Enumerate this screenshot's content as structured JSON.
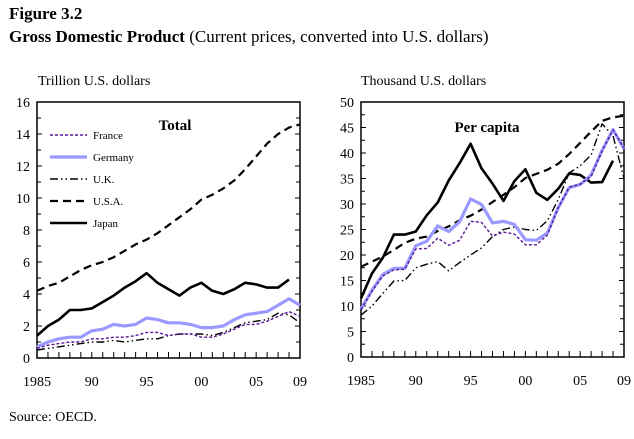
{
  "figure": {
    "number": "Figure 3.2",
    "title_bold": "Gross Domestic Product",
    "title_rest": " (Current prices, converted into U.S. dollars)",
    "source": "Source:  OECD."
  },
  "series_styles": {
    "France": {
      "color": "#5a1a9a",
      "style": "dash-short"
    },
    "Germany": {
      "color": "#9999ff",
      "style": "solid-thick"
    },
    "U.K.": {
      "color": "#000000",
      "style": "dash-dot-dot"
    },
    "U.S.A.": {
      "color": "#000000",
      "style": "dash-long"
    },
    "Japan": {
      "color": "#000000",
      "style": "solid"
    }
  },
  "chart_data": [
    {
      "type": "line",
      "title": "Total",
      "ylabel": "Trillion U.S. dollars",
      "xlabel": "",
      "x": [
        1985,
        1986,
        1987,
        1988,
        1989,
        1990,
        1991,
        1992,
        1993,
        1994,
        1995,
        1996,
        1997,
        1998,
        1999,
        2000,
        2001,
        2002,
        2003,
        2004,
        2005,
        2006,
        2007,
        2008,
        2009
      ],
      "xlim": [
        1985,
        2009
      ],
      "ylim": [
        0,
        16
      ],
      "xticks": [
        "1985",
        "90",
        "95",
        "00",
        "05",
        "09"
      ],
      "xtick_values": [
        1985,
        1990,
        1995,
        2000,
        2005,
        2009
      ],
      "yticks": [
        0,
        2,
        4,
        6,
        8,
        10,
        12,
        14,
        16
      ],
      "legend": [
        "France",
        "Germany",
        "U.K.",
        "U.S.A.",
        "Japan"
      ],
      "legend_position": "top-left",
      "grid": false,
      "series": [
        {
          "name": "France",
          "values": [
            0.6,
            0.8,
            0.9,
            1.0,
            1.0,
            1.2,
            1.2,
            1.3,
            1.3,
            1.4,
            1.6,
            1.6,
            1.4,
            1.5,
            1.5,
            1.3,
            1.3,
            1.5,
            1.8,
            2.1,
            2.1,
            2.3,
            2.6,
            2.9,
            2.6
          ]
        },
        {
          "name": "Germany",
          "values": [
            0.7,
            1.0,
            1.2,
            1.3,
            1.3,
            1.7,
            1.8,
            2.1,
            2.0,
            2.1,
            2.5,
            2.4,
            2.2,
            2.2,
            2.1,
            1.9,
            1.9,
            2.0,
            2.4,
            2.7,
            2.8,
            2.9,
            3.3,
            3.7,
            3.3
          ]
        },
        {
          "name": "U.K.",
          "values": [
            0.5,
            0.6,
            0.7,
            0.8,
            0.9,
            1.0,
            1.0,
            1.1,
            1.0,
            1.1,
            1.2,
            1.2,
            1.4,
            1.5,
            1.5,
            1.5,
            1.4,
            1.6,
            1.9,
            2.2,
            2.3,
            2.4,
            2.8,
            2.7,
            2.2
          ]
        },
        {
          "name": "U.S.A.",
          "values": [
            4.2,
            4.5,
            4.7,
            5.1,
            5.5,
            5.8,
            6.0,
            6.3,
            6.7,
            7.1,
            7.4,
            7.8,
            8.3,
            8.8,
            9.3,
            9.9,
            10.2,
            10.6,
            11.1,
            11.8,
            12.6,
            13.4,
            14.0,
            14.4,
            14.6
          ]
        },
        {
          "name": "Japan",
          "values": [
            1.4,
            2.0,
            2.4,
            3.0,
            3.0,
            3.1,
            3.5,
            3.9,
            4.4,
            4.8,
            5.3,
            4.7,
            4.3,
            3.9,
            4.4,
            4.7,
            4.2,
            4.0,
            4.3,
            4.7,
            4.6,
            4.4,
            4.4,
            4.9,
            null
          ]
        }
      ]
    },
    {
      "type": "line",
      "title": "Per capita",
      "ylabel": "Thousand U.S. dollars",
      "xlabel": "",
      "x": [
        1985,
        1986,
        1987,
        1988,
        1989,
        1990,
        1991,
        1992,
        1993,
        1994,
        1995,
        1996,
        1997,
        1998,
        1999,
        2000,
        2001,
        2002,
        2003,
        2004,
        2005,
        2006,
        2007,
        2008,
        2009
      ],
      "xlim": [
        1985,
        2009
      ],
      "ylim": [
        0,
        50
      ],
      "xticks": [
        "1985",
        "90",
        "95",
        "00",
        "05",
        "09"
      ],
      "xtick_values": [
        1985,
        1990,
        1995,
        2000,
        2005,
        2009
      ],
      "yticks": [
        0,
        5,
        10,
        15,
        20,
        25,
        30,
        35,
        40,
        45,
        50
      ],
      "grid": false,
      "series": [
        {
          "name": "France",
          "values": [
            9.3,
            12.9,
            15.9,
            17.1,
            17.2,
            21.2,
            21.3,
            23.3,
            21.9,
            22.9,
            26.6,
            26.4,
            23.7,
            24.5,
            24.1,
            22.0,
            22.0,
            23.9,
            29.3,
            33.3,
            33.9,
            35.4,
            40.4,
            44.5,
            41.0
          ]
        },
        {
          "name": "Germany",
          "values": [
            9.4,
            13.1,
            16.2,
            17.4,
            17.4,
            21.8,
            22.7,
            25.7,
            24.6,
            26.5,
            31.0,
            29.9,
            26.3,
            26.6,
            26.0,
            23.0,
            22.9,
            24.3,
            29.3,
            33.2,
            33.8,
            35.7,
            40.5,
            44.6,
            40.8
          ]
        },
        {
          "name": "U.K.",
          "values": [
            8.2,
            10.0,
            12.5,
            14.9,
            15.0,
            17.5,
            18.2,
            18.7,
            16.9,
            18.5,
            20.0,
            21.4,
            23.6,
            25.0,
            25.5,
            25.0,
            24.8,
            26.7,
            30.9,
            36.1,
            37.5,
            39.6,
            45.7,
            43.4,
            35.0
          ]
        },
        {
          "name": "U.S.A.",
          "values": [
            17.7,
            18.7,
            19.7,
            21.0,
            22.4,
            23.2,
            23.6,
            24.7,
            25.6,
            26.8,
            27.7,
            28.9,
            30.4,
            31.8,
            33.3,
            35.1,
            35.9,
            36.7,
            37.9,
            39.8,
            42.0,
            44.2,
            46.3,
            47.0,
            47.3
          ]
        },
        {
          "name": "Japan",
          "values": [
            11.5,
            16.4,
            19.5,
            24.0,
            24.0,
            24.6,
            27.8,
            30.3,
            34.6,
            38.0,
            41.8,
            37.0,
            34.0,
            30.6,
            34.5,
            36.8,
            32.2,
            30.8,
            33.0,
            36.0,
            35.7,
            34.2,
            34.3,
            38.5,
            null
          ]
        }
      ]
    }
  ]
}
